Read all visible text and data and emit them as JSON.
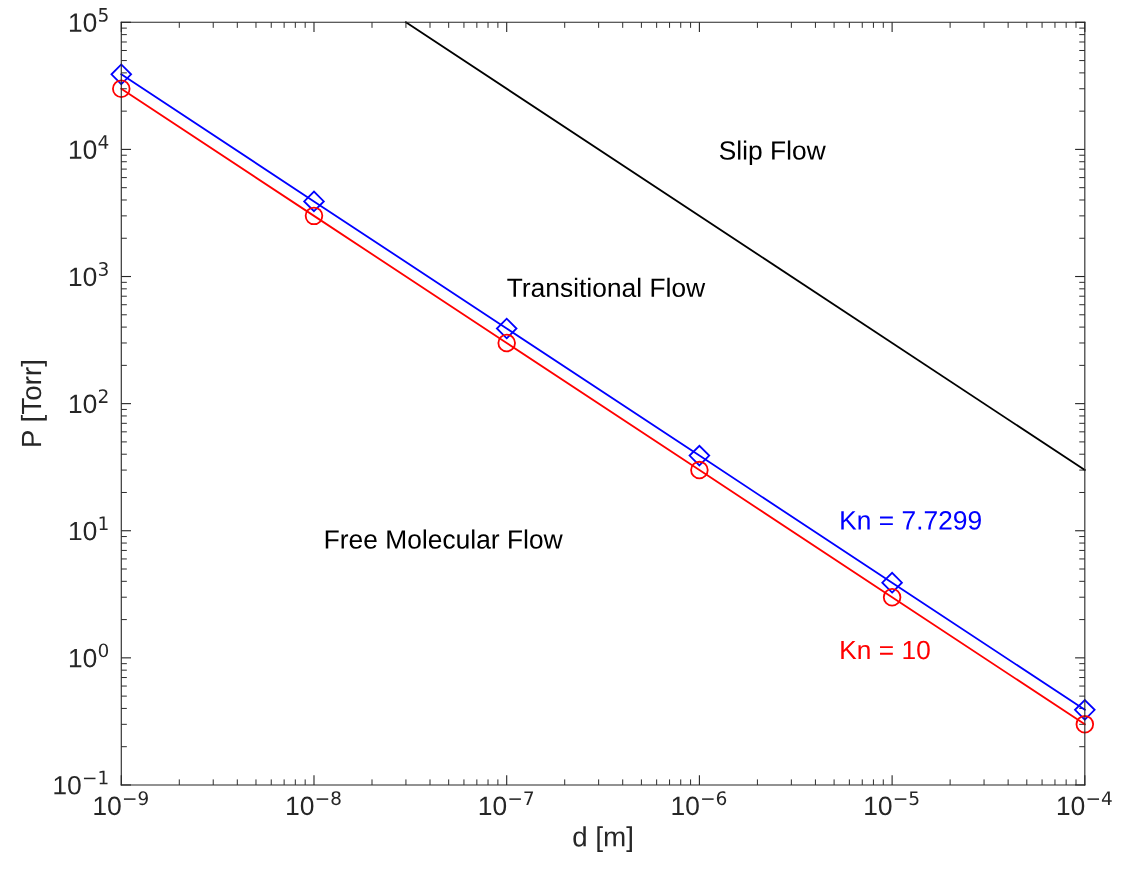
{
  "chart_data": {
    "type": "line",
    "xlabel": "d [m]",
    "ylabel": "P [Torr]",
    "log": "xy",
    "grid": false,
    "legend": false,
    "xlim": [
      1e-09,
      0.0001
    ],
    "ylim": [
      0.1,
      100000
    ],
    "xticks": [
      {
        "value": 1e-09,
        "label": "10$^{−9}$"
      },
      {
        "value": 1e-08,
        "label": "10$^{−8}$"
      },
      {
        "value": 1e-07,
        "label": "10$^{−7}$"
      },
      {
        "value": 1e-06,
        "label": "10$^{−6}$"
      },
      {
        "value": 1e-05,
        "label": "10$^{−5}$"
      },
      {
        "value": 0.0001,
        "label": "10$^{−4}$"
      }
    ],
    "yticks": [
      {
        "value": 0.1,
        "label": "10$^{−1}$"
      },
      {
        "value": 1,
        "label": "10$^{0}$"
      },
      {
        "value": 10,
        "label": "10$^{1}$"
      },
      {
        "value": 100,
        "label": "10$^{2}$"
      },
      {
        "value": 1000,
        "label": "10$^{3}$"
      },
      {
        "value": 10000,
        "label": "10$^{4}$"
      },
      {
        "value": 100000,
        "label": "10$^{5}$"
      }
    ],
    "series": [
      {
        "name": "Kn = 7.7299",
        "color": "#0000ff",
        "marker": "diamond",
        "x": [
          1e-09,
          1e-08,
          1e-07,
          1e-06,
          1e-05,
          0.0001
        ],
        "values": [
          39000,
          3900,
          390,
          39,
          3.9,
          0.39
        ]
      },
      {
        "name": "Kn = 10",
        "color": "#ff0000",
        "marker": "circle",
        "x": [
          1e-09,
          1e-08,
          1e-07,
          1e-06,
          1e-05,
          0.0001
        ],
        "values": [
          30000,
          3000,
          300,
          30,
          3,
          0.3
        ]
      },
      {
        "color": "#000000",
        "marker": "none",
        "x": [
          3e-08,
          0.0001
        ],
        "values": [
          100000,
          30
        ]
      }
    ],
    "annotations": [
      "Slip Flow",
      "Transitional Flow",
      "Free Molecular Flow"
    ]
  }
}
